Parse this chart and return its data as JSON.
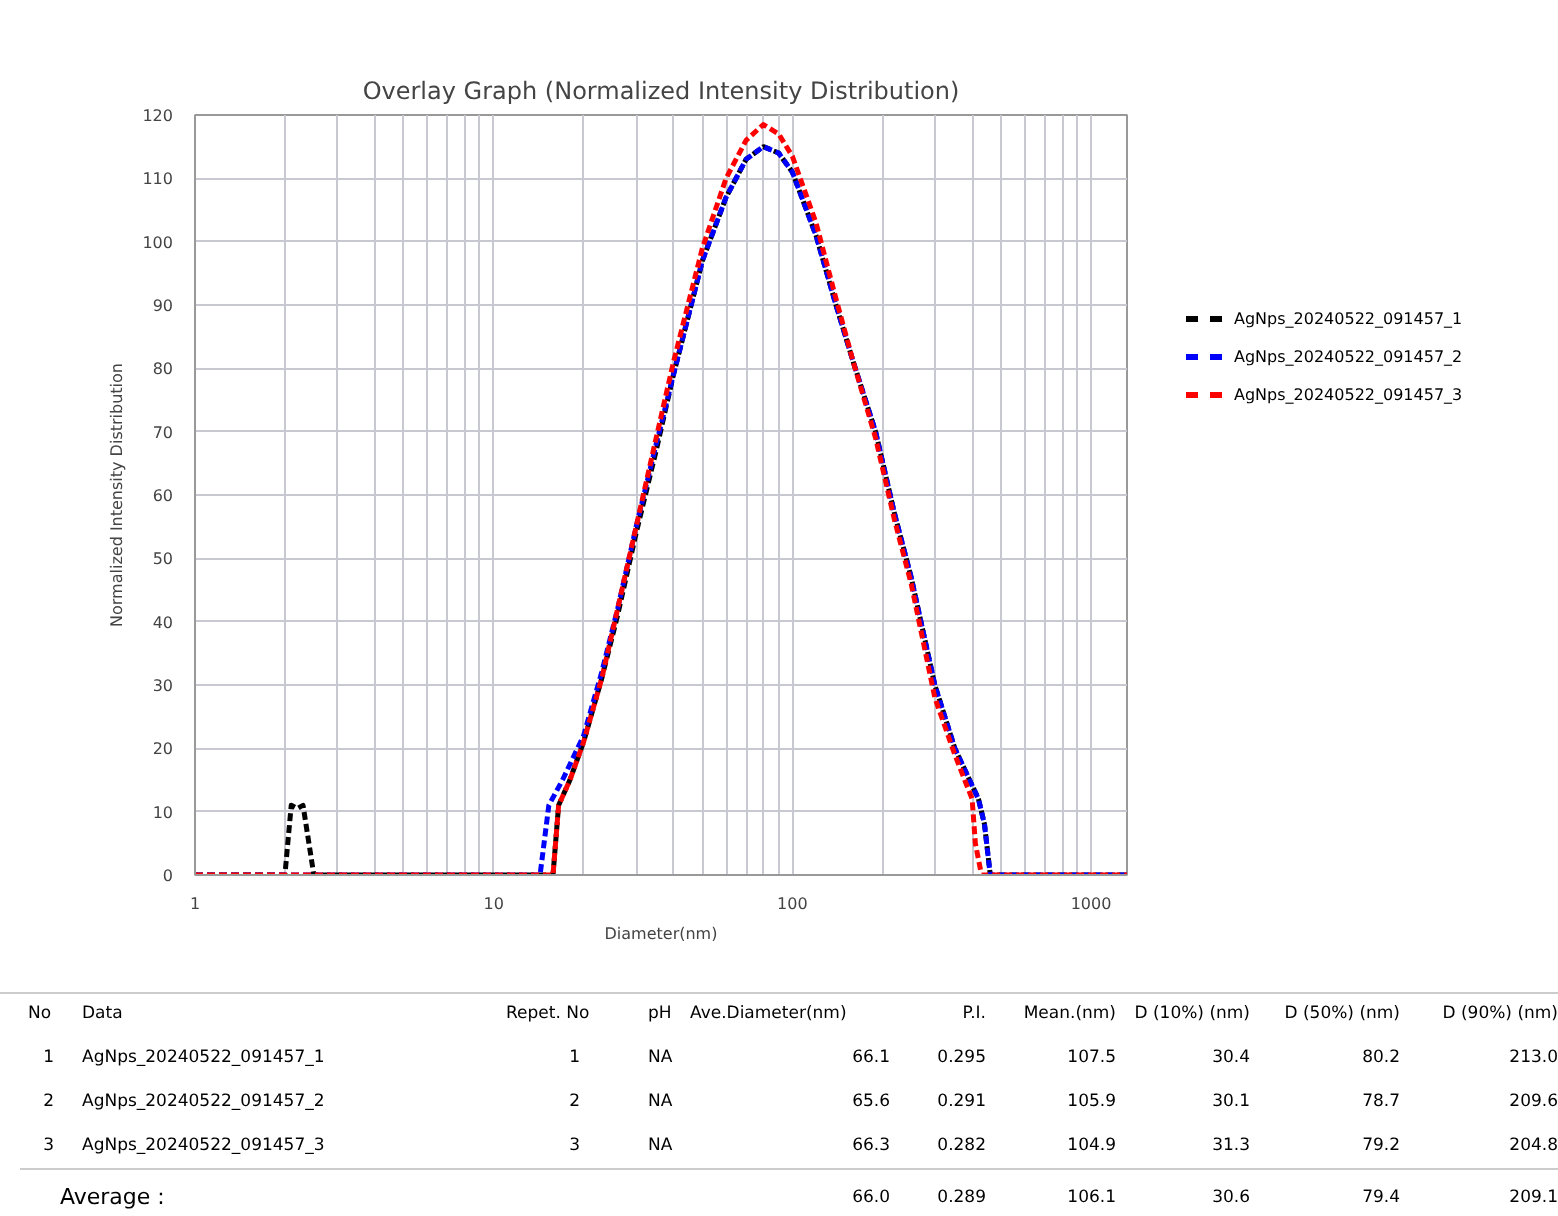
{
  "chart_data": {
    "type": "line",
    "title": "Overlay Graph (Normalized Intensity Distribution)",
    "xlabel": "Diameter(nm)",
    "ylabel": "Normalized Intensity Distribution",
    "log": "x",
    "xlim": [
      1,
      1320
    ],
    "xticks": [
      1,
      10,
      100,
      1000
    ],
    "ylim": [
      0,
      120
    ],
    "yticks": [
      0,
      10,
      20,
      30,
      40,
      50,
      60,
      70,
      80,
      90,
      100,
      110,
      120
    ],
    "grid": true,
    "legend": "right",
    "line_style": "dashed",
    "marker": "none",
    "series": [
      {
        "name": "AgNps_20240522_091457_1",
        "color": "#000000",
        "x": [
          1,
          2.0,
          2.1,
          2.2,
          2.3,
          2.5,
          15.8,
          16.5,
          18,
          20,
          23,
          26,
          30,
          35,
          40,
          50,
          60,
          70,
          80,
          90,
          100,
          120,
          140,
          160,
          190,
          220,
          250,
          300,
          350,
          420,
          440,
          460,
          1320
        ],
        "values": [
          0,
          0,
          11,
          10.5,
          11,
          0,
          0,
          11,
          15,
          21,
          31,
          41,
          54,
          67,
          79,
          97,
          107,
          113,
          115,
          114,
          111,
          101,
          90,
          81,
          70,
          57,
          47,
          30,
          20,
          12,
          8,
          0,
          0
        ]
      },
      {
        "name": "AgNps_20240522_091457_2",
        "color": "#0000ff",
        "x": [
          1,
          14.3,
          15.3,
          17,
          20,
          23,
          26,
          30,
          35,
          40,
          50,
          60,
          70,
          80,
          90,
          100,
          120,
          140,
          160,
          190,
          220,
          250,
          300,
          350,
          420,
          440,
          460,
          1320
        ],
        "values": [
          0,
          0,
          11,
          15,
          22,
          32,
          42,
          55,
          68,
          79,
          97,
          107,
          113,
          115,
          114,
          111,
          101,
          90,
          81,
          70,
          57,
          47,
          30,
          20,
          12,
          8,
          0,
          0
        ]
      },
      {
        "name": "AgNps_20240522_091457_3",
        "color": "#ff0000",
        "x": [
          1,
          15.8,
          16.5,
          18,
          20,
          23,
          26,
          30,
          35,
          40,
          50,
          60,
          70,
          80,
          90,
          100,
          120,
          140,
          160,
          190,
          220,
          250,
          300,
          350,
          400,
          410,
          430,
          1320
        ],
        "values": [
          0,
          0,
          11,
          15,
          21,
          31,
          42,
          55,
          69,
          81,
          99,
          110,
          116,
          118.5,
          117,
          113.5,
          103,
          91,
          81,
          69,
          56,
          46,
          28,
          19,
          12,
          5,
          0,
          0
        ]
      }
    ],
    "annotations": [
      "No",
      "Data",
      "Repet. No",
      "pH",
      "Ave.Diameter(nm)",
      "P.I.",
      "Mean.(nm)",
      "D (10%) (nm)",
      "D (50%) (nm)",
      "D (90%) (nm)",
      "1",
      "AgNps_20240522_091457_1",
      "1",
      "NA",
      "66.1",
      "0.295",
      "107.5",
      "30.4",
      "80.2",
      "213.0",
      "2",
      "AgNps_20240522_091457_2",
      "2",
      "NA",
      "65.6",
      "0.291",
      "105.9",
      "30.1",
      "78.7",
      "209.6",
      "3",
      "AgNps_20240522_091457_3",
      "3",
      "NA",
      "66.3",
      "0.282",
      "104.9",
      "31.3",
      "79.2",
      "204.8",
      "Average :",
      "66.0",
      "0.289",
      "106.1",
      "30.6",
      "79.4",
      "209.1"
    ]
  }
}
